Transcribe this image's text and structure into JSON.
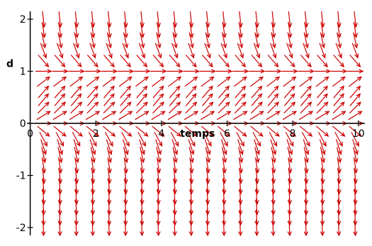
{
  "chart_data": {
    "type": "direction_field",
    "title": "",
    "xlabel": "temps",
    "ylabel": "d",
    "xlim": [
      -0.1,
      10.2
    ],
    "ylim": [
      -2.15,
      2.15
    ],
    "x_ticks": [
      0,
      2,
      4,
      6,
      8,
      10
    ],
    "y_ticks": [
      -2,
      -1,
      1,
      2
    ],
    "x_tick_labels": [
      "0",
      "2",
      "4",
      "6",
      "8",
      "10"
    ],
    "y_tick_labels": [
      "-2",
      "-1",
      "1",
      "2"
    ],
    "origin_label": "0",
    "field_x": [
      0.4,
      0.9,
      1.4,
      1.9,
      2.4,
      2.9,
      3.4,
      3.9,
      4.4,
      4.9,
      5.4,
      5.9,
      6.4,
      6.9,
      7.4,
      7.9,
      8.4,
      8.9,
      9.4,
      9.9
    ],
    "field_y": [
      -2.0,
      -1.8,
      -1.6,
      -1.4,
      -1.2,
      -1.0,
      -0.8,
      -0.6,
      -0.45,
      -0.3,
      -0.15,
      0.0,
      0.15,
      0.3,
      0.45,
      0.6,
      0.8,
      1.0,
      1.2,
      1.4,
      1.6,
      1.8,
      2.0
    ],
    "slope_function": "dd/dt = 3 * d * (1 - d)",
    "equilibria": [
      0,
      1
    ],
    "grid": false,
    "legend": "none",
    "colors": {
      "field": "#cc0000",
      "axes": "#000000",
      "background": "#ffffff"
    }
  }
}
